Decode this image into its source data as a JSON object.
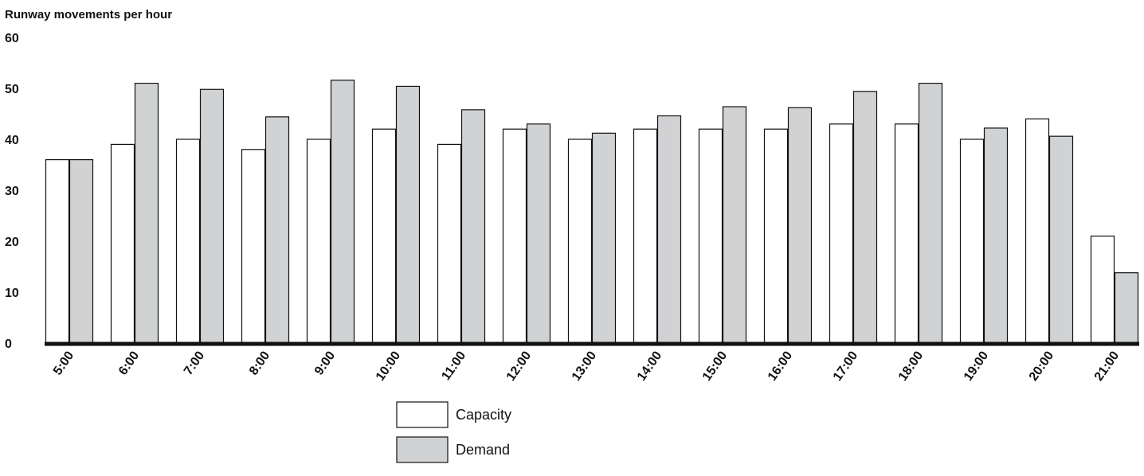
{
  "chart_data": {
    "type": "bar",
    "ylabel": "Runway movements per hour",
    "ylim": [
      0,
      60
    ],
    "yticks": [
      0,
      10,
      20,
      30,
      40,
      50,
      60
    ],
    "categories": [
      "5:00",
      "6:00",
      "7:00",
      "8:00",
      "9:00",
      "10:00",
      "11:00",
      "12:00",
      "13:00",
      "14:00",
      "15:00",
      "16:00",
      "17:00",
      "18:00",
      "19:00",
      "20:00",
      "21:00"
    ],
    "series": [
      {
        "name": "Capacity",
        "color": "#ffffff",
        "values": [
          36,
          39,
          40,
          38,
          40,
          42,
          39,
          42,
          40,
          42,
          42,
          42,
          43,
          43,
          40,
          44,
          21
        ]
      },
      {
        "name": "Demand",
        "color": "#d1d2d4",
        "values": [
          36,
          51,
          49.8,
          44.4,
          51.6,
          50.4,
          45.8,
          43,
          41.2,
          44.6,
          46.4,
          46.2,
          49.4,
          51,
          42.2,
          40.6,
          13.8
        ]
      }
    ],
    "grid": false,
    "legend_position": "bottom-center"
  }
}
